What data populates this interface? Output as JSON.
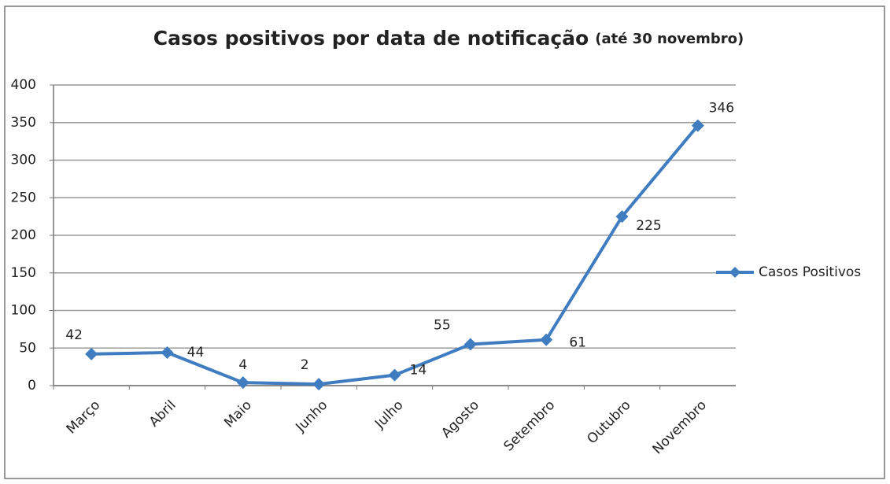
{
  "chart_data": {
    "type": "line",
    "title": "Casos positivos por data de notificação",
    "subtitle": "(até 30 novembro)",
    "categories": [
      "Março",
      "Abril",
      "Maio",
      "Junho",
      "Julho",
      "Agosto",
      "Setembro",
      "Outubro",
      "Novembro"
    ],
    "series": [
      {
        "name": "Casos Positivos",
        "color": "#3f7cc0",
        "values": [
          42,
          44,
          4,
          2,
          14,
          55,
          61,
          225,
          346
        ]
      }
    ],
    "ylim": [
      0,
      400
    ],
    "yticks": [
      0,
      50,
      100,
      150,
      200,
      250,
      300,
      350,
      400
    ],
    "grid": true,
    "legend": "right"
  }
}
